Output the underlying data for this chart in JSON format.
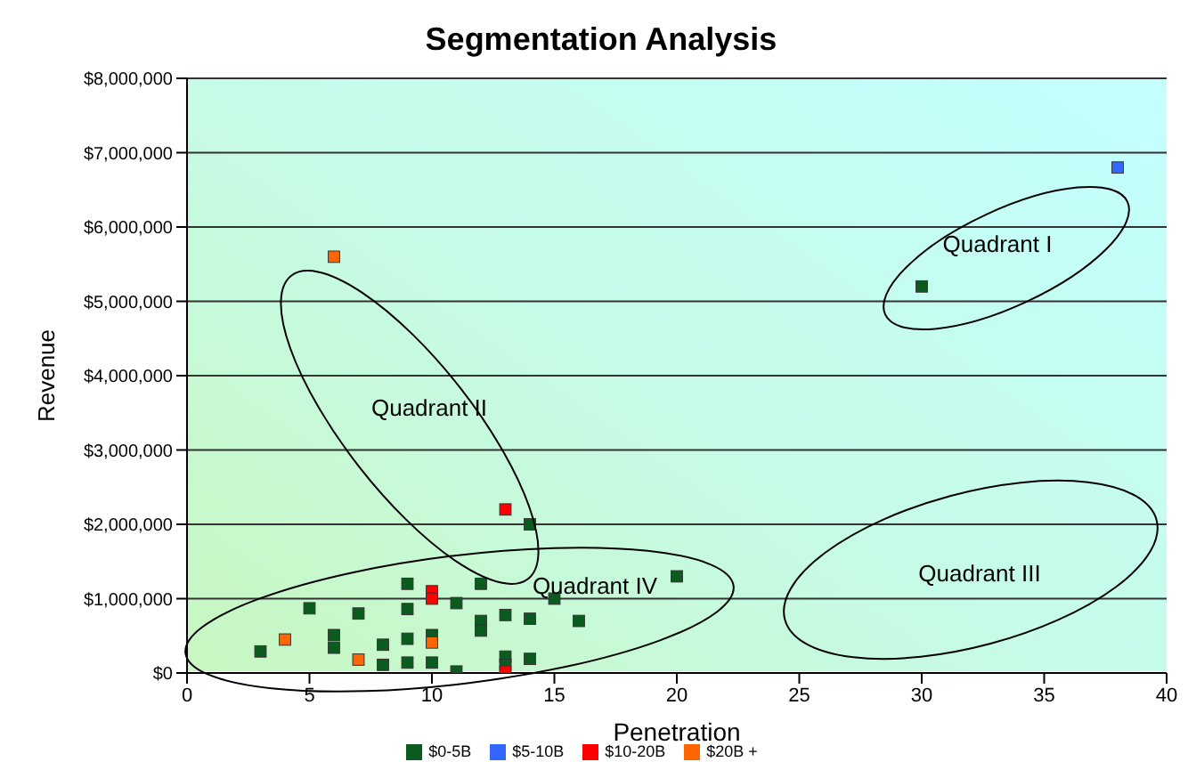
{
  "chart_data": {
    "type": "scatter",
    "title": "Segmentation Analysis",
    "xlabel": "Penetration",
    "ylabel": "Revenue",
    "xlim": [
      0,
      40
    ],
    "xticks": [
      0,
      5,
      10,
      15,
      20,
      25,
      30,
      35,
      40
    ],
    "ylim": [
      0,
      8000000
    ],
    "yticks": [
      {
        "value": 0,
        "label": "$0"
      },
      {
        "value": 1000000,
        "label": "$1,000,000"
      },
      {
        "value": 2000000,
        "label": "$2,000,000"
      },
      {
        "value": 3000000,
        "label": "$3,000,000"
      },
      {
        "value": 4000000,
        "label": "$4,000,000"
      },
      {
        "value": 5000000,
        "label": "$5,000,000"
      },
      {
        "value": 6000000,
        "label": "$6,000,000"
      },
      {
        "value": 7000000,
        "label": "$7,000,000"
      },
      {
        "value": 8000000,
        "label": "$8,000,000"
      }
    ],
    "grid": "y",
    "legend": "bottom",
    "marker": "square",
    "series": [
      {
        "name": "$0-5B",
        "color": "#0b5a1e",
        "x": [
          14,
          9,
          12,
          15,
          5,
          7,
          9,
          11,
          12,
          12,
          13,
          14,
          16,
          6,
          6,
          3,
          9,
          10,
          8,
          8,
          9,
          10,
          11,
          13,
          13,
          14,
          20,
          30
        ],
        "values": [
          2000000,
          1200000,
          1200000,
          1000000,
          870000,
          800000,
          860000,
          940000,
          700000,
          570000,
          780000,
          730000,
          700000,
          510000,
          340000,
          290000,
          460000,
          510000,
          380000,
          110000,
          140000,
          140000,
          20000,
          220000,
          110000,
          190000,
          1300000,
          5200000
        ]
      },
      {
        "name": "$5-10B",
        "color": "#3366ff",
        "x": [
          38
        ],
        "values": [
          6800000
        ]
      },
      {
        "name": "$10-20B",
        "color": "#ff0000",
        "x": [
          10,
          10,
          13,
          13
        ],
        "values": [
          1100000,
          1000000,
          2200000,
          20000
        ]
      },
      {
        "name": "$20B +",
        "color": "#ff6600",
        "x": [
          4,
          7,
          10,
          6
        ],
        "values": [
          450000,
          180000,
          410000,
          5600000
        ]
      }
    ],
    "annotations": [
      "Quadrant I",
      "Quadrant II",
      "Quadrant III",
      "Quadrant IV"
    ]
  }
}
